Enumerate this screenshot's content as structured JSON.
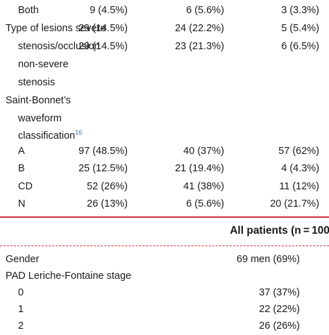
{
  "table1": {
    "rows": [
      {
        "label": "Both",
        "indent": true,
        "values": [
          "9 (4.5%)",
          "6 (5.6%)",
          "3 (3.3%)"
        ]
      },
      {
        "label": "Type of lesions severe",
        "indent": false,
        "values": [
          "29 (14.5%)",
          "24 (22.2%)",
          "5 (5.4%)"
        ]
      },
      {
        "label": "stenosis/occlusion",
        "indent": true,
        "values": [
          "29 (14.5%)",
          "23 (21.3%)",
          "6 (6.5%)"
        ]
      },
      {
        "label": "non-severe",
        "indent": true,
        "values": [
          "",
          "",
          ""
        ]
      },
      {
        "label": "stenosis",
        "indent": true,
        "values": [
          "",
          "",
          ""
        ]
      },
      {
        "label": "Saint-Bonnet’s",
        "indent": false,
        "values": [
          "",
          "",
          ""
        ]
      },
      {
        "label": "waveform",
        "indent": true,
        "values": [
          "",
          "",
          ""
        ]
      },
      {
        "label": "classification",
        "indent": true,
        "sup": "16",
        "values": [
          "",
          "",
          ""
        ]
      },
      {
        "label": "A",
        "indent": true,
        "values": [
          "97 (48.5%)",
          "40 (37%)",
          "57 (62%)"
        ]
      },
      {
        "label": "B",
        "indent": true,
        "values": [
          "25 (12.5%)",
          "21 (19.4%)",
          "4 (4.3%)"
        ]
      },
      {
        "label": "CD",
        "indent": true,
        "values": [
          "52 (26%)",
          "41 (38%)",
          "11 (12%)"
        ]
      },
      {
        "label": "N",
        "indent": true,
        "values": [
          "26 (13%)",
          "6 (5.6%)",
          "20 (21.7%)"
        ]
      }
    ]
  },
  "table2": {
    "header": "All patients (n = 100)",
    "rows": [
      {
        "label": "Gender",
        "indent": false,
        "value": "69 men (69%)"
      },
      {
        "label": "PAD Leriche-Fontaine stage",
        "indent": false,
        "value": ""
      },
      {
        "label": "0",
        "indent": true,
        "value": "37 (37%)"
      },
      {
        "label": "1",
        "indent": true,
        "value": "22 (22%)"
      },
      {
        "label": "2",
        "indent": true,
        "value": "26 (26%)"
      }
    ]
  },
  "colors": {
    "rule": "#cc2d3a",
    "superscript": "#3b6fb6",
    "text": "#1a1a1a"
  }
}
